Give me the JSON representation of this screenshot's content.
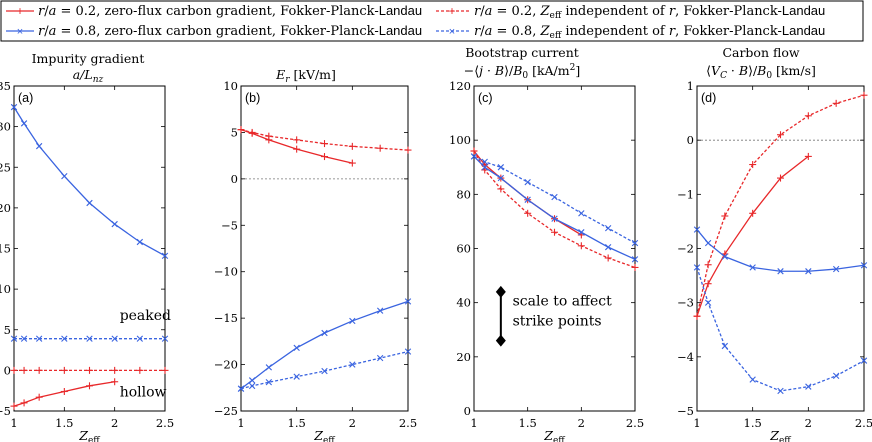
{
  "legend": {
    "entries": [
      {
        "id": "red_solid",
        "label": "r/a = 0.2, zero-flux carbon gradient, Fokker-Planck-Landau",
        "color": "#e8282a",
        "dash": "solid"
      },
      {
        "id": "red_dashed",
        "label": "r/a = 0.2, Z_eff independent of r, Fokker-Planck-Landau",
        "color": "#e8282a",
        "dash": "dashed"
      },
      {
        "id": "blue_solid",
        "label": "r/a = 0.8, zero-flux carbon gradient, Fokker-Planck-Landau",
        "color": "#3a64e0",
        "dash": "solid"
      },
      {
        "id": "blue_dashed",
        "label": "r/a = 0.8, Z_eff independent of r, Fokker-Planck-Landau",
        "color": "#3a64e0",
        "dash": "dashed"
      }
    ]
  },
  "chart_data": [
    {
      "panel": "(a)",
      "type": "line",
      "title_lines": [
        "Impurity gradient",
        "a/L_nz"
      ],
      "xlabel": "Z_eff",
      "xlim": [
        1,
        2.5
      ],
      "ylim": [
        -5,
        35
      ],
      "xticks": [
        "1",
        "1.5",
        "2",
        "2.5"
      ],
      "yticks": [
        "-5",
        "0",
        "5",
        "10",
        "15",
        "20",
        "25",
        "30",
        "35"
      ],
      "zero_line": false,
      "annotations": [
        "peaked",
        "hollow"
      ],
      "series": [
        {
          "name": "red_solid",
          "x": [
            1,
            1.1,
            1.25,
            1.5,
            1.75,
            2
          ],
          "y": [
            -4.4,
            -4.0,
            -3.3,
            -2.6,
            -1.9,
            -1.4
          ]
        },
        {
          "name": "red_dashed",
          "x": [
            1,
            1.1,
            1.25,
            1.5,
            1.75,
            2,
            2.25,
            2.5
          ],
          "y": [
            0,
            0,
            0,
            0,
            0,
            0,
            0,
            0
          ]
        },
        {
          "name": "blue_solid",
          "x": [
            1,
            1.1,
            1.25,
            1.5,
            1.75,
            2,
            2.25,
            2.5
          ],
          "y": [
            32.4,
            30.4,
            27.6,
            23.9,
            20.6,
            18.0,
            15.8,
            14.1
          ]
        },
        {
          "name": "blue_dashed",
          "x": [
            1,
            1.1,
            1.25,
            1.5,
            1.75,
            2,
            2.25,
            2.5
          ],
          "y": [
            3.9,
            3.9,
            3.9,
            3.9,
            3.9,
            3.9,
            3.9,
            3.9
          ]
        }
      ]
    },
    {
      "panel": "(b)",
      "type": "line",
      "title_lines": [
        "E_r [kV/m]"
      ],
      "xlabel": "Z_eff",
      "xlim": [
        1,
        2.5
      ],
      "ylim": [
        -25,
        10
      ],
      "xticks": [
        "1",
        "1.5",
        "2",
        "2.5"
      ],
      "yticks": [
        "-25",
        "-20",
        "-15",
        "-10",
        "-5",
        "0",
        "5",
        "10"
      ],
      "zero_line": true,
      "annotations": [],
      "series": [
        {
          "name": "red_solid",
          "x": [
            1,
            1.1,
            1.25,
            1.5,
            1.75,
            2
          ],
          "y": [
            5.3,
            4.9,
            4.2,
            3.2,
            2.4,
            1.7
          ]
        },
        {
          "name": "red_dashed",
          "x": [
            1,
            1.1,
            1.25,
            1.5,
            1.75,
            2,
            2.25,
            2.5
          ],
          "y": [
            5.3,
            5.0,
            4.6,
            4.2,
            3.8,
            3.5,
            3.3,
            3.1
          ]
        },
        {
          "name": "blue_solid",
          "x": [
            1,
            1.1,
            1.25,
            1.5,
            1.75,
            2,
            2.25,
            2.5
          ],
          "y": [
            -22.6,
            -21.7,
            -20.3,
            -18.2,
            -16.6,
            -15.3,
            -14.2,
            -13.2
          ]
        },
        {
          "name": "blue_dashed",
          "x": [
            1,
            1.1,
            1.25,
            1.5,
            1.75,
            2,
            2.25,
            2.5
          ],
          "y": [
            -22.6,
            -22.3,
            -21.9,
            -21.3,
            -20.7,
            -20.0,
            -19.3,
            -18.6
          ]
        }
      ]
    },
    {
      "panel": "(c)",
      "type": "line",
      "title_lines": [
        "Bootstrap current",
        "−⟨j · B⟩/B₀ [kA/m²]"
      ],
      "xlabel": "Z_eff",
      "xlim": [
        1,
        2.5
      ],
      "ylim": [
        0,
        120
      ],
      "xticks": [
        "1",
        "1.5",
        "2",
        "2.5"
      ],
      "yticks": [
        "0",
        "20",
        "40",
        "60",
        "80",
        "100",
        "120"
      ],
      "zero_line": false,
      "annotations": [
        "scale to affect",
        "strike points"
      ],
      "series": [
        {
          "name": "red_solid",
          "x": [
            1,
            1.1,
            1.25,
            1.5,
            1.75,
            2
          ],
          "y": [
            96,
            91,
            86,
            78,
            71,
            65
          ]
        },
        {
          "name": "red_dashed",
          "x": [
            1,
            1.1,
            1.25,
            1.5,
            1.75,
            2,
            2.25,
            2.5
          ],
          "y": [
            96,
            89,
            82,
            73,
            66,
            61,
            56.5,
            53
          ]
        },
        {
          "name": "blue_solid",
          "x": [
            1,
            1.1,
            1.25,
            1.5,
            1.75,
            2,
            2.25,
            2.5
          ],
          "y": [
            94,
            90,
            86,
            78,
            71,
            66,
            60.5,
            56
          ]
        },
        {
          "name": "blue_dashed",
          "x": [
            1,
            1.1,
            1.25,
            1.5,
            1.75,
            2,
            2.25,
            2.5
          ],
          "y": [
            94,
            92,
            90,
            84.5,
            79,
            73,
            67.5,
            62
          ]
        }
      ]
    },
    {
      "panel": "(d)",
      "type": "line",
      "title_lines": [
        "Carbon flow",
        "⟨V_C · B⟩/B₀ [km/s]"
      ],
      "xlabel": "Z_eff",
      "xlim": [
        1,
        2.5
      ],
      "ylim": [
        -5,
        1
      ],
      "xticks": [
        "1",
        "1.5",
        "2",
        "2.5"
      ],
      "yticks": [
        "-5",
        "-4",
        "-3",
        "-2",
        "-1",
        "0",
        "1"
      ],
      "zero_line": true,
      "annotations": [],
      "series": [
        {
          "name": "red_solid",
          "x": [
            1,
            1.1,
            1.25,
            1.5,
            1.75,
            2
          ],
          "y": [
            -3.25,
            -2.65,
            -2.1,
            -1.35,
            -0.7,
            -0.3
          ]
        },
        {
          "name": "red_dashed",
          "x": [
            1,
            1.1,
            1.25,
            1.5,
            1.75,
            2,
            2.25,
            2.5
          ],
          "y": [
            -3.25,
            -2.3,
            -1.4,
            -0.45,
            0.1,
            0.45,
            0.68,
            0.83
          ]
        },
        {
          "name": "blue_solid",
          "x": [
            1,
            1.1,
            1.25,
            1.5,
            1.75,
            2,
            2.25,
            2.5
          ],
          "y": [
            -1.65,
            -1.9,
            -2.15,
            -2.35,
            -2.42,
            -2.42,
            -2.38,
            -2.31
          ]
        },
        {
          "name": "blue_dashed",
          "x": [
            1,
            1.1,
            1.25,
            1.5,
            1.75,
            2,
            2.25,
            2.5
          ],
          "y": [
            -2.35,
            -3.0,
            -3.8,
            -4.42,
            -4.63,
            -4.55,
            -4.35,
            -4.07
          ]
        }
      ]
    }
  ]
}
